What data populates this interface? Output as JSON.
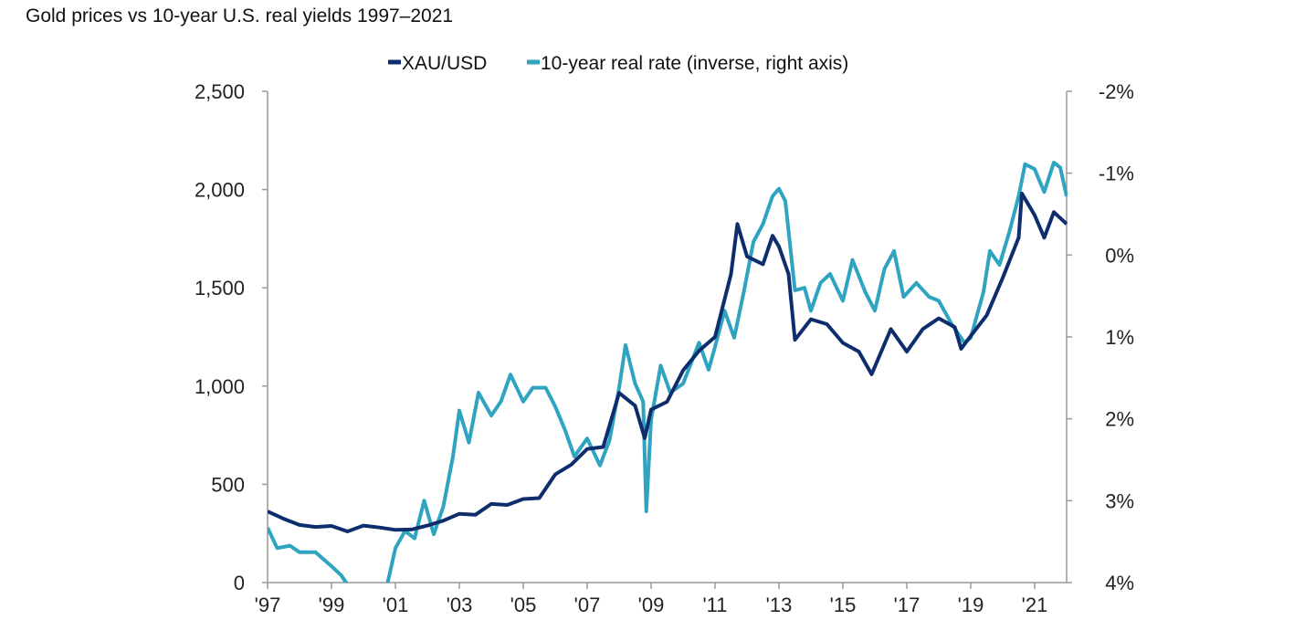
{
  "chart_data": {
    "type": "line",
    "title": "Gold prices vs 10-year U.S. real yields 1997–2021",
    "legend_position": "top-center",
    "grid": false,
    "x_ticks": [
      "'97",
      "'99",
      "'01",
      "'03",
      "'05",
      "'07",
      "'09",
      "'11",
      "'13",
      "'15",
      "'17",
      "'19",
      "'21"
    ],
    "x_tick_years": [
      1997,
      1999,
      2001,
      2003,
      2005,
      2007,
      2009,
      2011,
      2013,
      2015,
      2017,
      2019,
      2021
    ],
    "xlim": [
      1997,
      2022
    ],
    "left_axis": {
      "ticks": [
        "0",
        "500",
        "1,000",
        "1,500",
        "2,000",
        "2,500"
      ],
      "tick_values": [
        0,
        500,
        1000,
        1500,
        2000,
        2500
      ],
      "ylim": [
        0,
        2500
      ]
    },
    "right_axis": {
      "ticks": [
        "-2%",
        "-1%",
        "0%",
        "1%",
        "2%",
        "3%",
        "4%"
      ],
      "tick_values": [
        -2,
        -1,
        0,
        1,
        2,
        3,
        4
      ],
      "ylim": [
        -2,
        4
      ],
      "inverted": true
    },
    "series": [
      {
        "name": "XAU/USD",
        "axis": "left",
        "color": "#0d2d6c",
        "x": [
          1997.0,
          1997.5,
          1998.0,
          1998.5,
          1999.0,
          1999.5,
          2000.0,
          2000.5,
          2001.0,
          2001.5,
          2002.0,
          2002.5,
          2003.0,
          2003.5,
          2004.0,
          2004.5,
          2005.0,
          2005.5,
          2006.0,
          2006.5,
          2007.0,
          2007.5,
          2008.0,
          2008.5,
          2008.8,
          2009.0,
          2009.5,
          2010.0,
          2010.5,
          2011.0,
          2011.5,
          2011.7,
          2012.0,
          2012.5,
          2012.8,
          2013.0,
          2013.3,
          2013.5,
          2014.0,
          2014.5,
          2015.0,
          2015.5,
          2015.9,
          2016.5,
          2017.0,
          2017.5,
          2018.0,
          2018.5,
          2018.7,
          2019.0,
          2019.5,
          2020.0,
          2020.5,
          2020.6,
          2021.0,
          2021.3,
          2021.6,
          2022.0
        ],
        "values": [
          362,
          325,
          293,
          283,
          288,
          260,
          290,
          280,
          268,
          270,
          290,
          315,
          350,
          345,
          400,
          395,
          425,
          430,
          550,
          600,
          680,
          690,
          965,
          900,
          735,
          880,
          920,
          1080,
          1180,
          1250,
          1570,
          1825,
          1660,
          1620,
          1765,
          1710,
          1570,
          1235,
          1340,
          1315,
          1220,
          1175,
          1060,
          1290,
          1175,
          1290,
          1345,
          1300,
          1190,
          1255,
          1360,
          1550,
          1755,
          1980,
          1870,
          1755,
          1885,
          1825
        ]
      },
      {
        "name": "10-year real rate (inverse, right axis)",
        "axis": "right",
        "color": "#2fa4c0",
        "x": [
          1997.0,
          1997.3,
          1997.7,
          1998.0,
          1998.5,
          1999.0,
          1999.3,
          1999.6,
          2000.0,
          2000.5,
          2000.7,
          2001.0,
          2001.3,
          2001.6,
          2001.9,
          2002.2,
          2002.5,
          2002.8,
          2003.0,
          2003.3,
          2003.6,
          2004.0,
          2004.3,
          2004.6,
          2005.0,
          2005.3,
          2005.7,
          2006.0,
          2006.3,
          2006.6,
          2007.0,
          2007.4,
          2007.7,
          2008.0,
          2008.2,
          2008.5,
          2008.75,
          2008.85,
          2009.0,
          2009.3,
          2009.6,
          2010.0,
          2010.5,
          2010.8,
          2011.0,
          2011.3,
          2011.6,
          2011.9,
          2012.2,
          2012.5,
          2012.8,
          2013.0,
          2013.2,
          2013.5,
          2013.8,
          2014.0,
          2014.3,
          2014.6,
          2015.0,
          2015.3,
          2015.7,
          2016.0,
          2016.3,
          2016.6,
          2016.9,
          2017.3,
          2017.7,
          2018.0,
          2018.4,
          2018.8,
          2019.0,
          2019.4,
          2019.6,
          2019.9,
          2020.2,
          2020.5,
          2020.7,
          2021.0,
          2021.3,
          2021.6,
          2021.8,
          2022.0
        ],
        "values": [
          3.33,
          3.58,
          3.55,
          3.63,
          3.63,
          3.8,
          3.91,
          4.08,
          4.13,
          4.02,
          4.1,
          3.58,
          3.37,
          3.46,
          3.0,
          3.41,
          3.07,
          2.46,
          1.9,
          2.29,
          1.68,
          1.96,
          1.79,
          1.46,
          1.79,
          1.62,
          1.62,
          1.85,
          2.13,
          2.46,
          2.24,
          2.57,
          2.26,
          1.62,
          1.1,
          1.57,
          1.79,
          3.13,
          2.01,
          1.35,
          1.68,
          1.57,
          1.07,
          1.4,
          1.12,
          0.68,
          1.01,
          0.45,
          -0.16,
          -0.38,
          -0.72,
          -0.81,
          -0.66,
          0.43,
          0.4,
          0.68,
          0.34,
          0.23,
          0.56,
          0.06,
          0.45,
          0.68,
          0.17,
          -0.05,
          0.51,
          0.34,
          0.51,
          0.56,
          0.84,
          1.07,
          1.01,
          0.45,
          -0.05,
          0.12,
          -0.27,
          -0.72,
          -1.11,
          -1.05,
          -0.77,
          -1.13,
          -1.07,
          -0.72
        ]
      }
    ]
  }
}
